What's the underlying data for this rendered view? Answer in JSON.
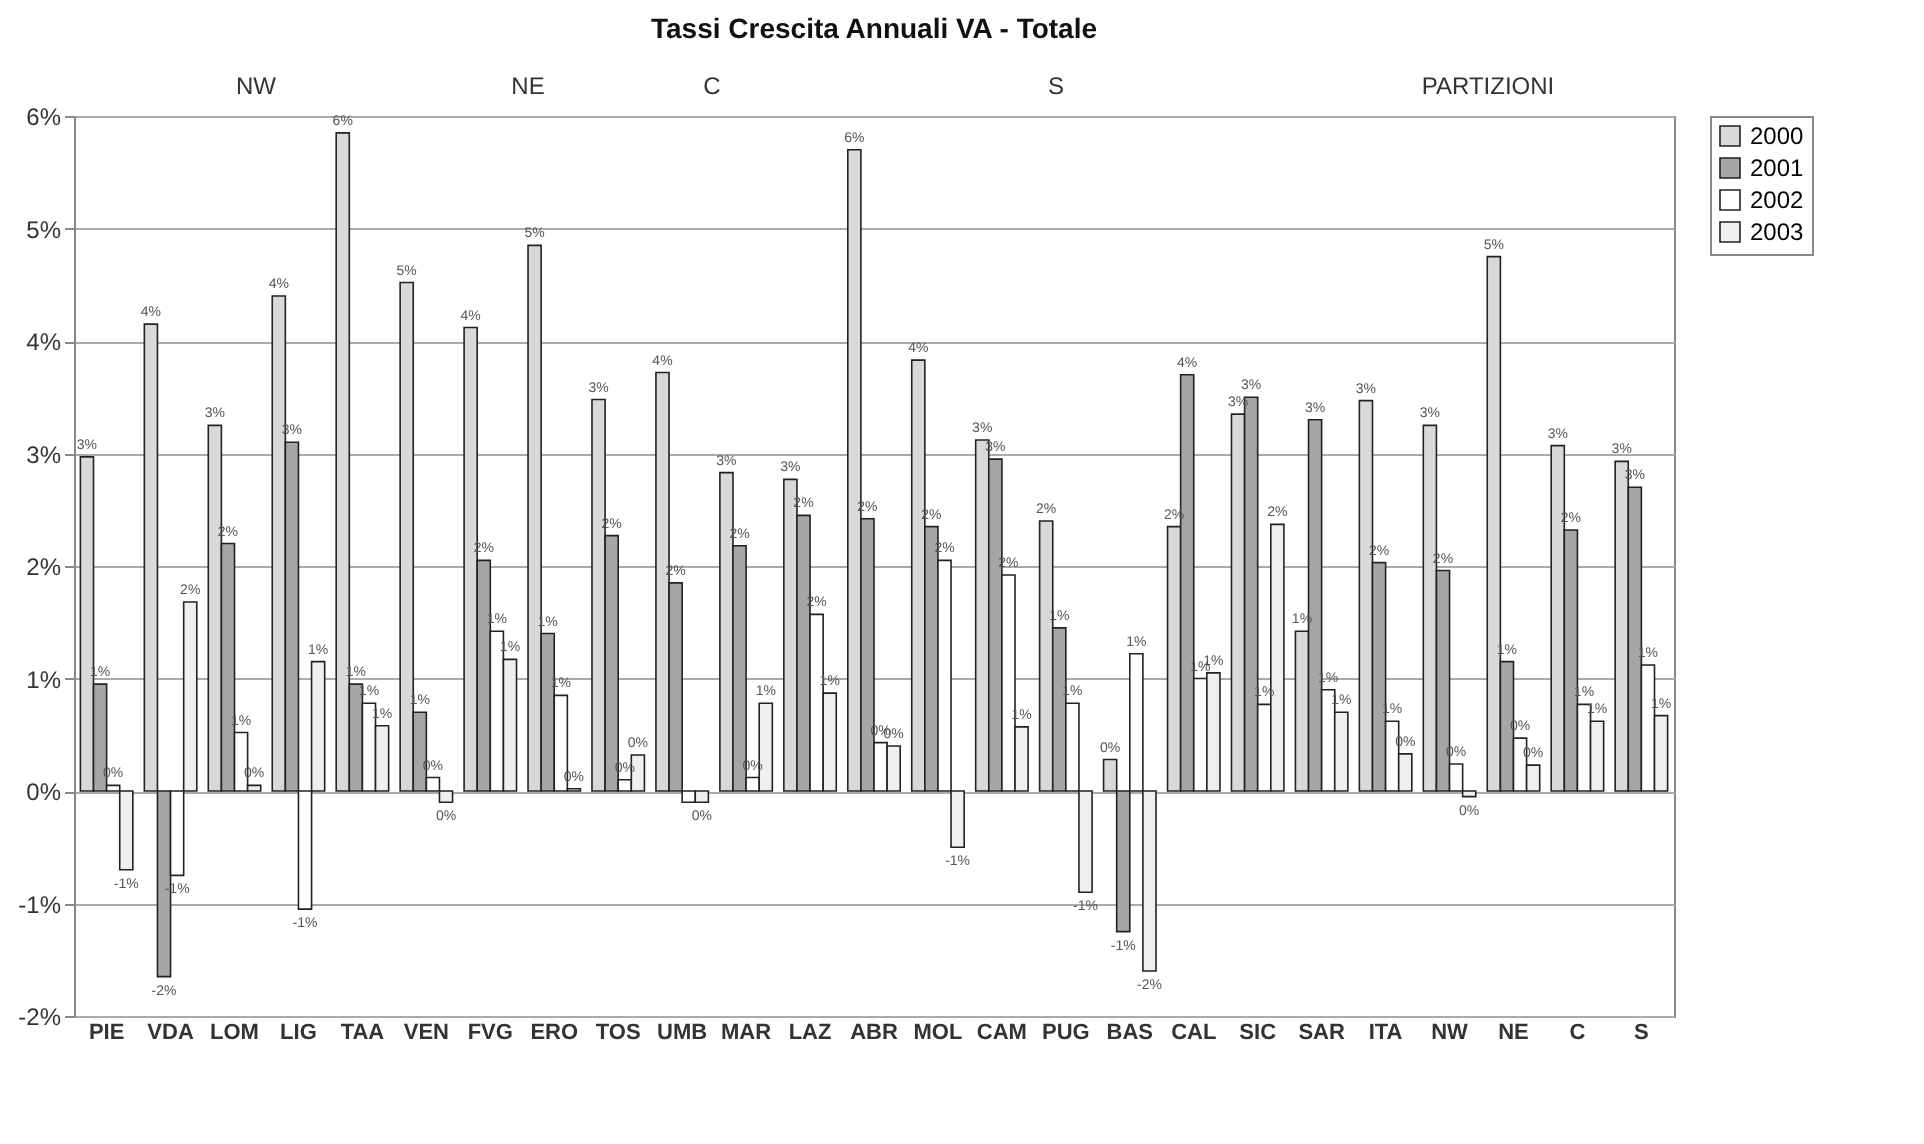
{
  "chart_data": {
    "type": "bar",
    "title": "Tassi Crescita Annuali VA - Totale",
    "categories": [
      "PIE",
      "VDA",
      "LOM",
      "LIG",
      "TAA",
      "VEN",
      "FVG",
      "ERO",
      "TOS",
      "UMB",
      "MAR",
      "LAZ",
      "ABR",
      "MOL",
      "CAM",
      "PUG",
      "BAS",
      "CAL",
      "SIC",
      "SAR",
      "ITA",
      "NW",
      "NE",
      "C",
      "S"
    ],
    "series": [
      {
        "name": "2000",
        "color": "#d9d9d9",
        "values": [
          2.97,
          4.15,
          3.25,
          4.4,
          5.85,
          4.52,
          4.12,
          4.85,
          3.48,
          3.72,
          2.83,
          2.77,
          5.7,
          3.83,
          3.12,
          2.4,
          0.28,
          2.35,
          3.35,
          1.42,
          3.47,
          3.25,
          4.75,
          3.07,
          2.93
        ],
        "value_labels": [
          "3%",
          "4%",
          "3%",
          "4%",
          "6%",
          "5%",
          "4%",
          "5%",
          "3%",
          "4%",
          "3%",
          "3%",
          "6%",
          "4%",
          "3%",
          "2%",
          "0%",
          "2%",
          "3%",
          "1%",
          "3%",
          "3%",
          "5%",
          "3%",
          "3%"
        ]
      },
      {
        "name": "2001",
        "color": "#a6a6a6",
        "values": [
          0.95,
          -1.65,
          2.2,
          3.1,
          0.95,
          0.7,
          2.05,
          1.4,
          2.27,
          1.85,
          2.18,
          2.45,
          2.42,
          2.35,
          2.95,
          1.45,
          -1.25,
          3.7,
          3.5,
          3.3,
          2.03,
          1.96,
          1.15,
          2.32,
          2.7
        ],
        "value_labels": [
          "1%",
          "-2%",
          "2%",
          "3%",
          "1%",
          "1%",
          "2%",
          "1%",
          "2%",
          "2%",
          "2%",
          "2%",
          "2%",
          "2%",
          "3%",
          "1%",
          "-1%",
          "4%",
          "3%",
          "3%",
          "2%",
          "2%",
          "1%",
          "2%",
          "3%"
        ]
      },
      {
        "name": "2002",
        "color": "#ffffff",
        "values": [
          0.05,
          -0.75,
          0.52,
          -1.05,
          0.78,
          0.12,
          1.42,
          0.85,
          0.1,
          -0.1,
          0.12,
          1.57,
          0.43,
          2.05,
          1.92,
          0.78,
          1.22,
          1.0,
          0.77,
          0.9,
          0.62,
          0.24,
          0.47,
          0.77,
          1.12
        ],
        "value_labels": [
          "0%",
          "-1%",
          "1%",
          "-1%",
          "1%",
          "0%",
          "1%",
          "1%",
          "0%",
          null,
          "0%",
          "2%",
          "0%",
          "2%",
          "2%",
          "1%",
          "1%",
          "1%",
          "1%",
          "1%",
          "1%",
          "0%",
          "0%",
          "1%",
          "1%"
        ]
      },
      {
        "name": "2003",
        "color": "#efefef",
        "values": [
          -0.7,
          1.68,
          0.05,
          1.15,
          0.58,
          -0.1,
          1.17,
          0.02,
          0.32,
          -0.1,
          0.78,
          0.87,
          0.4,
          -0.5,
          0.57,
          -0.9,
          -1.6,
          1.05,
          2.37,
          0.7,
          0.33,
          -0.05,
          0.23,
          0.62,
          0.67
        ],
        "value_labels": [
          "-1%",
          "2%",
          "0%",
          "1%",
          "1%",
          "0%",
          "1%",
          "0%",
          "0%",
          "0%",
          "1%",
          "1%",
          "0%",
          "-1%",
          "1%",
          "-1%",
          "-2%",
          "1%",
          "2%",
          "1%",
          "0%",
          "0%",
          "0%",
          "1%",
          "1%"
        ]
      }
    ],
    "ylim": [
      -2,
      6
    ],
    "yticks": [
      {
        "value": -2,
        "label": "-2%"
      },
      {
        "value": -1,
        "label": "-1%"
      },
      {
        "value": 0,
        "label": "0%"
      },
      {
        "value": 1,
        "label": "1%"
      },
      {
        "value": 2,
        "label": "2%"
      },
      {
        "value": 3,
        "label": "3%"
      },
      {
        "value": 4,
        "label": "4%"
      },
      {
        "value": 5,
        "label": "5%"
      },
      {
        "value": 6,
        "label": "6%"
      }
    ],
    "grid": "y",
    "legend": "right",
    "annotations": [
      "NW",
      "NE",
      "C",
      "S",
      "PARTIZIONI"
    ]
  }
}
